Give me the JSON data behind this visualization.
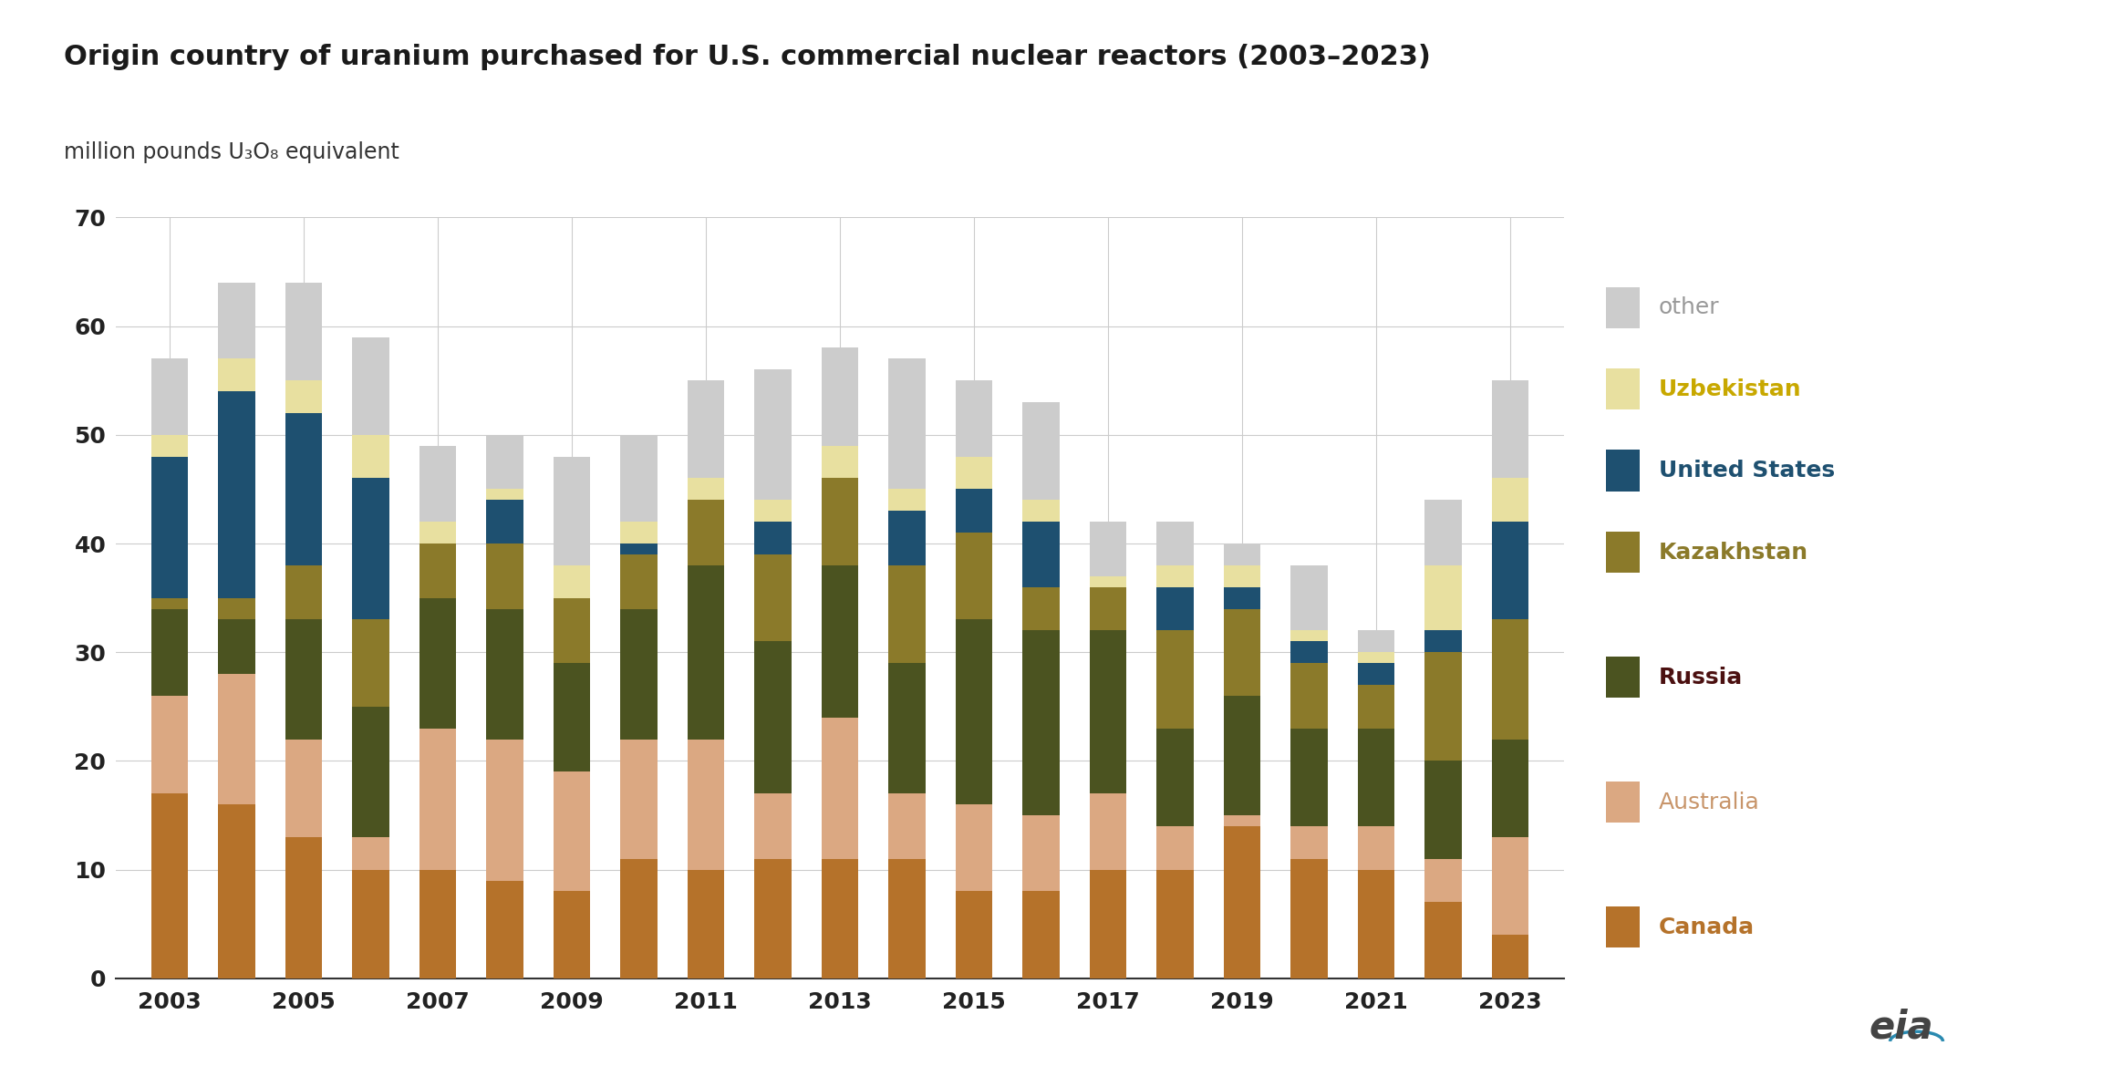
{
  "title": "Origin country of uranium purchased for U.S. commercial nuclear reactors (2003–2023)",
  "subtitle": "million pounds U₃O₈ equivalent",
  "years": [
    2003,
    2004,
    2005,
    2006,
    2007,
    2008,
    2009,
    2010,
    2011,
    2012,
    2013,
    2014,
    2015,
    2016,
    2017,
    2018,
    2019,
    2020,
    2021,
    2022,
    2023
  ],
  "categories": [
    "Canada",
    "Australia",
    "Russia",
    "Kazakhstan",
    "United States",
    "Uzbekistan",
    "other"
  ],
  "colors": [
    "#b5722a",
    "#dba882",
    "#4b5320",
    "#8b7a2a",
    "#1e5070",
    "#e8e0a0",
    "#cccccc"
  ],
  "data": {
    "Canada": [
      17,
      16,
      13,
      10,
      10,
      9,
      8,
      11,
      10,
      11,
      11,
      11,
      8,
      8,
      10,
      10,
      14,
      11,
      10,
      7,
      4
    ],
    "Australia": [
      9,
      12,
      9,
      3,
      13,
      13,
      11,
      11,
      12,
      6,
      13,
      6,
      8,
      7,
      7,
      4,
      1,
      3,
      4,
      4,
      9
    ],
    "Russia": [
      8,
      5,
      11,
      12,
      12,
      12,
      10,
      12,
      16,
      14,
      14,
      12,
      17,
      17,
      15,
      9,
      11,
      9,
      9,
      9,
      9
    ],
    "Kazakhstan": [
      1,
      2,
      5,
      8,
      5,
      6,
      6,
      5,
      6,
      8,
      8,
      9,
      8,
      4,
      4,
      9,
      8,
      6,
      4,
      10,
      11
    ],
    "United States": [
      13,
      19,
      14,
      13,
      0,
      4,
      0,
      1,
      0,
      3,
      0,
      5,
      4,
      6,
      0,
      4,
      2,
      2,
      2,
      2,
      9
    ],
    "Uzbekistan": [
      2,
      3,
      3,
      4,
      2,
      1,
      3,
      2,
      2,
      2,
      3,
      2,
      3,
      2,
      1,
      2,
      2,
      1,
      1,
      6,
      4
    ],
    "other": [
      7,
      7,
      9,
      9,
      7,
      5,
      10,
      8,
      9,
      12,
      9,
      12,
      7,
      9,
      5,
      4,
      2,
      6,
      2,
      6,
      9
    ]
  },
  "ylim": [
    0,
    70
  ],
  "yticks": [
    0,
    10,
    20,
    30,
    40,
    50,
    60,
    70
  ],
  "bg_color": "#ffffff",
  "grid_color": "#cccccc",
  "bar_width": 0.55,
  "legend_labels": [
    "other",
    "Uzbekistan",
    "United States",
    "Kazakhstan",
    "Russia",
    "Australia",
    "Canada"
  ],
  "legend_colors": [
    "#cccccc",
    "#e8e0a0",
    "#1e5070",
    "#8b7a2a",
    "#4b5320",
    "#dba882",
    "#b5722a"
  ],
  "legend_bold": [
    false,
    true,
    true,
    true,
    true,
    false,
    true
  ],
  "legend_colors_text": [
    "#999999",
    "#c8a800",
    "#1e5070",
    "#8b7a2a",
    "#4b3010",
    "#dba882",
    "#b5722a"
  ]
}
